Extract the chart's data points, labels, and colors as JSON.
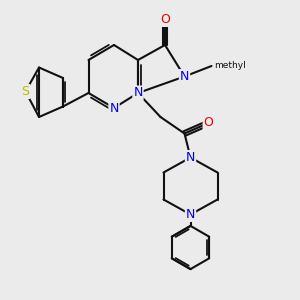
{
  "bg_color": "#ebebeb",
  "bond_color": "#111111",
  "bond_width": 1.5,
  "atom_colors": {
    "N": "#0000ee",
    "O": "#ee0000",
    "S": "#bbbb00",
    "C": "#111111"
  },
  "font_size": 9
}
